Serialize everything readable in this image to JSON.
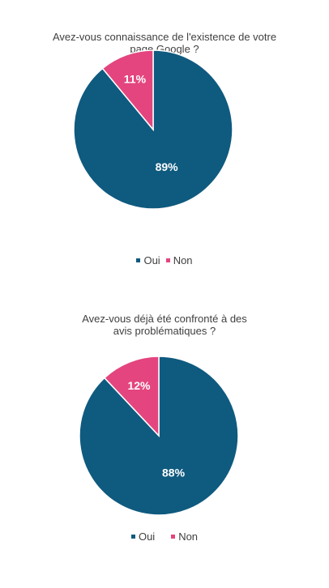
{
  "colors": {
    "oui": "#0f5a7f",
    "non": "#e4457e",
    "label": "#ffffff",
    "text": "#404040"
  },
  "chart_data": [
    {
      "type": "pie",
      "title": "Avez-vous connaissance de l'existence de votre\npage Google ?",
      "slices": [
        {
          "name": "Oui",
          "value": 89,
          "label": "89%"
        },
        {
          "name": "Non",
          "value": 11,
          "label": "11%"
        }
      ],
      "legend": [
        "Oui",
        "Non"
      ],
      "legend_position": "bottom"
    },
    {
      "type": "pie",
      "title": "Avez-vous déjà été confronté à des\navis problématiques ?",
      "slices": [
        {
          "name": "Oui",
          "value": 88,
          "label": "88%"
        },
        {
          "name": "Non",
          "value": 12,
          "label": "12%"
        }
      ],
      "legend": [
        "Oui",
        "Non"
      ],
      "legend_position": "bottom"
    }
  ]
}
